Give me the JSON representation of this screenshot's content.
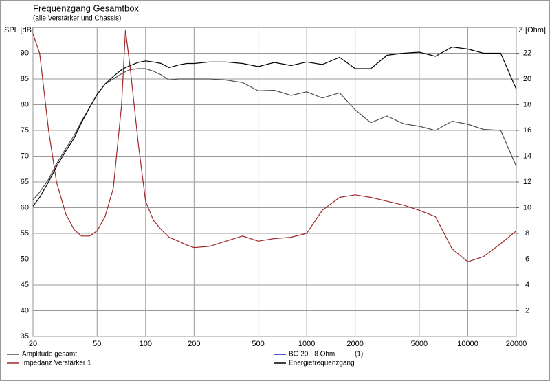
{
  "chart_data": {
    "type": "line",
    "title": "Frequenzgang Gesamtbox",
    "subtitle": "(alle Verstärker und Chassis)",
    "y_label": "SPL [dB]",
    "y2_label": "Z [Ohm]",
    "xscale": "log",
    "grid": true,
    "legend": "bottom",
    "x": [
      20,
      22,
      25,
      28,
      32,
      36,
      40,
      45,
      50,
      56,
      63,
      71,
      75,
      80,
      90,
      100,
      112,
      125,
      140,
      160,
      180,
      200,
      250,
      315,
      400,
      500,
      630,
      800,
      1000,
      1250,
      1600,
      2000,
      2500,
      3150,
      4000,
      5000,
      6300,
      8000,
      10000,
      12500,
      16000,
      20000
    ],
    "xlim": [
      20,
      20000
    ],
    "xticks": [
      20,
      50,
      100,
      200,
      500,
      1000,
      2000,
      5000,
      10000,
      20000
    ],
    "ylim": [
      35,
      95
    ],
    "yticks": [
      35,
      40,
      45,
      50,
      55,
      60,
      65,
      70,
      75,
      80,
      85,
      90
    ],
    "y2lim": [
      0,
      24
    ],
    "y2ticks": [
      2,
      4,
      6,
      8,
      10,
      12,
      14,
      16,
      18,
      20,
      22
    ],
    "series": [
      {
        "name": "Amplitude gesamt",
        "color": "#505050",
        "values": [
          61.5,
          63,
          65.5,
          68.5,
          71.5,
          74,
          76.8,
          79.5,
          82,
          84,
          85,
          86,
          86.4,
          86.8,
          87,
          87,
          86.5,
          85.8,
          84.8,
          85,
          85,
          85,
          85,
          84.8,
          84.3,
          82.7,
          82.8,
          81.8,
          82.5,
          81.3,
          82.3,
          79,
          76.5,
          77.8,
          76.3,
          75.8,
          75,
          76.8,
          76.2,
          75.2,
          75,
          68
        ]
      },
      {
        "name": "Impedanz Verstärker 1",
        "color": "#a02828",
        "axis": "y2",
        "values": [
          23.5,
          22,
          16,
          12,
          9.5,
          8.3,
          7.8,
          7.8,
          8.2,
          9.3,
          11.5,
          18,
          23.8,
          21,
          15,
          10.5,
          9,
          8.3,
          7.7,
          7.4,
          7.1,
          6.9,
          7,
          7.4,
          7.8,
          7.4,
          7.6,
          7.7,
          8,
          9.8,
          10.8,
          11,
          10.8,
          10.5,
          10.2,
          9.8,
          9.3,
          6.8,
          5.8,
          6.2,
          7.2,
          8.2
        ]
      },
      {
        "name": "BG 20 - 8 Ohm",
        "label": "(1)",
        "color": "#2020c0"
      },
      {
        "name": "Energiefrequenzgang",
        "color": "#000000",
        "values": [
          60.3,
          62,
          65,
          68,
          71,
          73.5,
          76.5,
          79.5,
          82,
          84,
          85.5,
          86.8,
          87.2,
          87.6,
          88.2,
          88.5,
          88.3,
          88,
          87.2,
          87.7,
          88,
          88,
          88.3,
          88.3,
          88,
          87.4,
          88.2,
          87.6,
          88.3,
          87.8,
          89.2,
          87,
          87,
          89.6,
          90,
          90.2,
          89.4,
          91.2,
          90.8,
          90,
          90,
          83
        ]
      }
    ]
  }
}
